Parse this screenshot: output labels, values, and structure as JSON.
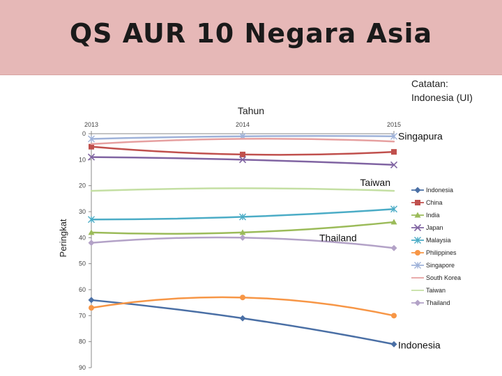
{
  "slide": {
    "title": "QS AUR 10 Negara Asia",
    "note_lines": [
      "Catatan:",
      "Indonesia (UI)"
    ]
  },
  "chart_data": {
    "type": "line",
    "xlabel": "Tahun",
    "ylabel": "Peringkat",
    "x": [
      "2013",
      "2014",
      "2015"
    ],
    "x_axis_position": "top",
    "y_inverted": true,
    "ylim": [
      0,
      90
    ],
    "yticks": [
      0,
      10,
      20,
      30,
      40,
      50,
      60,
      70,
      80,
      90
    ],
    "grid": false,
    "legend_position": "right",
    "series": [
      {
        "name": "Indonesia",
        "values": [
          64,
          71,
          81
        ],
        "color": "#4a6fa5",
        "marker": "diamond"
      },
      {
        "name": "China",
        "values": [
          5,
          8,
          7
        ],
        "color": "#c0504d",
        "marker": "square"
      },
      {
        "name": "India",
        "values": [
          38,
          38,
          34
        ],
        "color": "#9bbb59",
        "marker": "triangle"
      },
      {
        "name": "Japan",
        "values": [
          9,
          10,
          12
        ],
        "color": "#8064a2",
        "marker": "x"
      },
      {
        "name": "Malaysia",
        "values": [
          33,
          32,
          29
        ],
        "color": "#4bacc6",
        "marker": "star"
      },
      {
        "name": "Philippines",
        "values": [
          67,
          63,
          70
        ],
        "color": "#f79646",
        "marker": "circle"
      },
      {
        "name": "Singapore",
        "values": [
          2,
          1,
          1
        ],
        "color": "#9fb2d9",
        "marker": "star"
      },
      {
        "name": "South Korea",
        "values": [
          4,
          2,
          3
        ],
        "color": "#e6a0a0",
        "marker": "none"
      },
      {
        "name": "Taiwan",
        "values": [
          22,
          21,
          22
        ],
        "color": "#c4dfa3",
        "marker": "none"
      },
      {
        "name": "Thailand",
        "values": [
          42,
          40,
          44
        ],
        "color": "#b3a2c7",
        "marker": "diamond"
      }
    ],
    "annotations": [
      {
        "text": "Singapura",
        "series": "Singapore",
        "x": "2015"
      },
      {
        "text": "Taiwan",
        "series": "Taiwan",
        "x": "2015"
      },
      {
        "text": "Thailand",
        "series": "Thailand",
        "x": "2014"
      },
      {
        "text": "Indonesia",
        "series": "Indonesia",
        "x": "2015"
      }
    ]
  }
}
